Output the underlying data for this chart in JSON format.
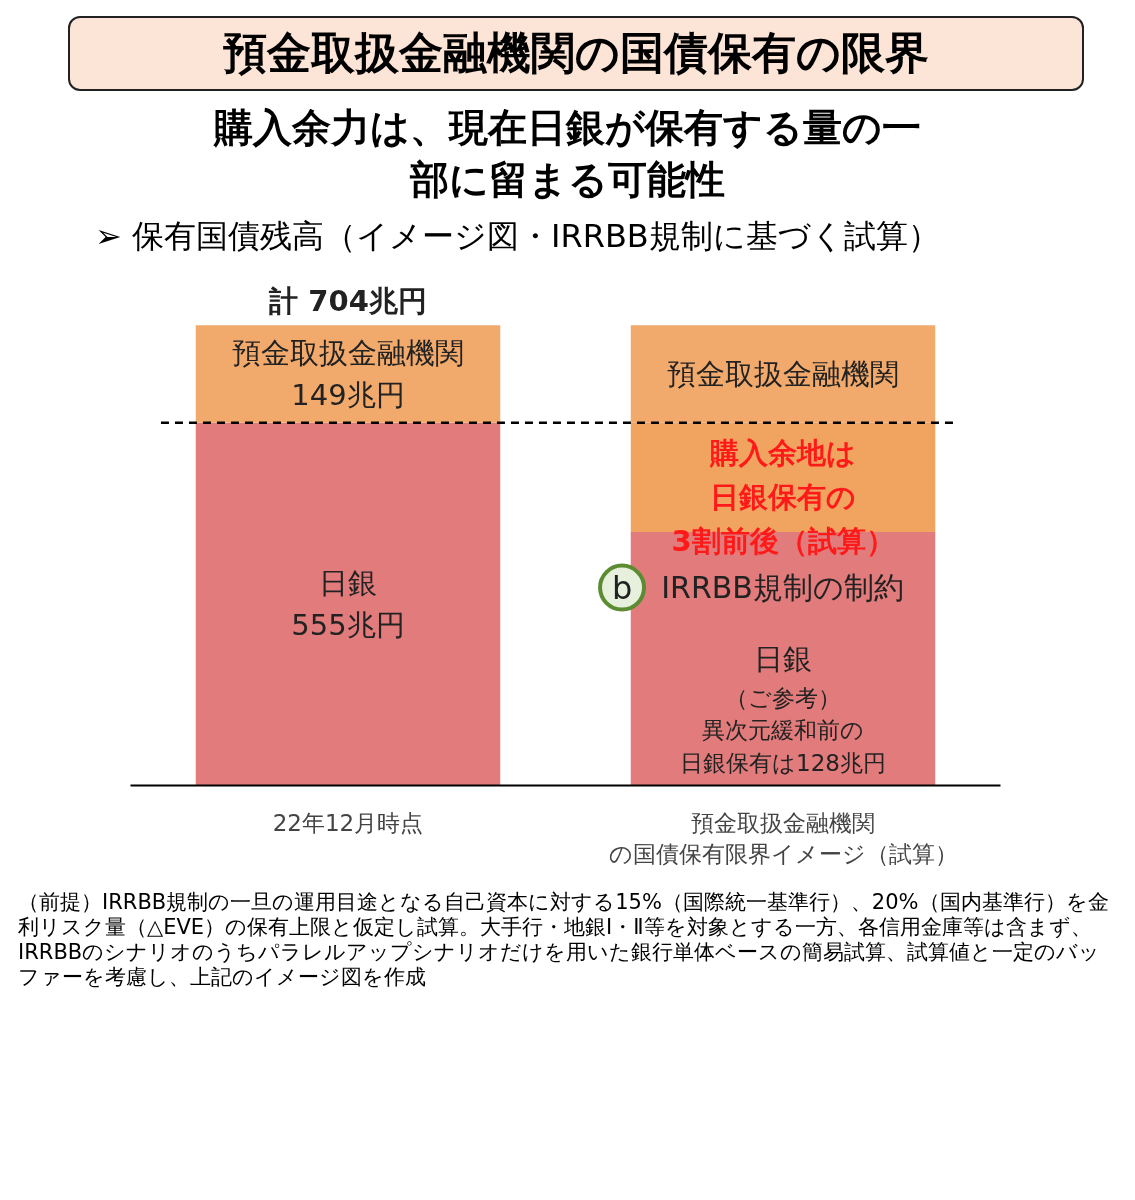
{
  "chart_data": {
    "type": "bar",
    "stacked": true,
    "title": "預金取扱金融機関の国債保有の限界",
    "subtitle": "購入余力は、現在日銀が保有する量の一部に留まる可能性",
    "categories": [
      "22年12月時点",
      "預金取扱金融機関の国債保有限界イメージ（試算）"
    ],
    "series": [
      {
        "name": "日銀",
        "color": "#e27b7b",
        "values": [
          555,
          388
        ],
        "value_labels": [
          "555兆円",
          null
        ]
      },
      {
        "color": "#f0a460",
        "values": [
          0,
          167
        ]
      },
      {
        "name": "預金取扱金融機関",
        "color": "#f2aa6c",
        "values": [
          149,
          149
        ],
        "value_labels": [
          "149兆円",
          null
        ]
      }
    ],
    "totals": [
      "計 704兆円",
      null
    ],
    "ref_lines": [
      {
        "axis": "y",
        "value": 555,
        "line_style": "dashed",
        "color": "#000000"
      }
    ],
    "legend": false,
    "annotations": [
      "➢ 保有国債残高（イメージ図・IRRBB規制に基づく試算）",
      "購入余地は日銀保有の3割前後（試算）",
      "b",
      "IRRBB規制の制約",
      "（ご参考）異次元緩和前の日銀保有は128兆円",
      "（前提）IRRBB規制の一旦の運用目途となる自己資本に対する15%（国際統一基準行）、20%（国内基準行）を金利リスク量（△EVE）の保有上限と仮定し試算。大手行・地銀Ⅰ・Ⅱ等を対象とする一方、各信用金庫等は含まず、IRRBBのシナリオのうちパラレルアップシナリオだけを用いた銀行単体ベースの簡易試算、試算値と一定のバッファーを考慮し、上記のイメージ図を作成"
    ]
  }
}
